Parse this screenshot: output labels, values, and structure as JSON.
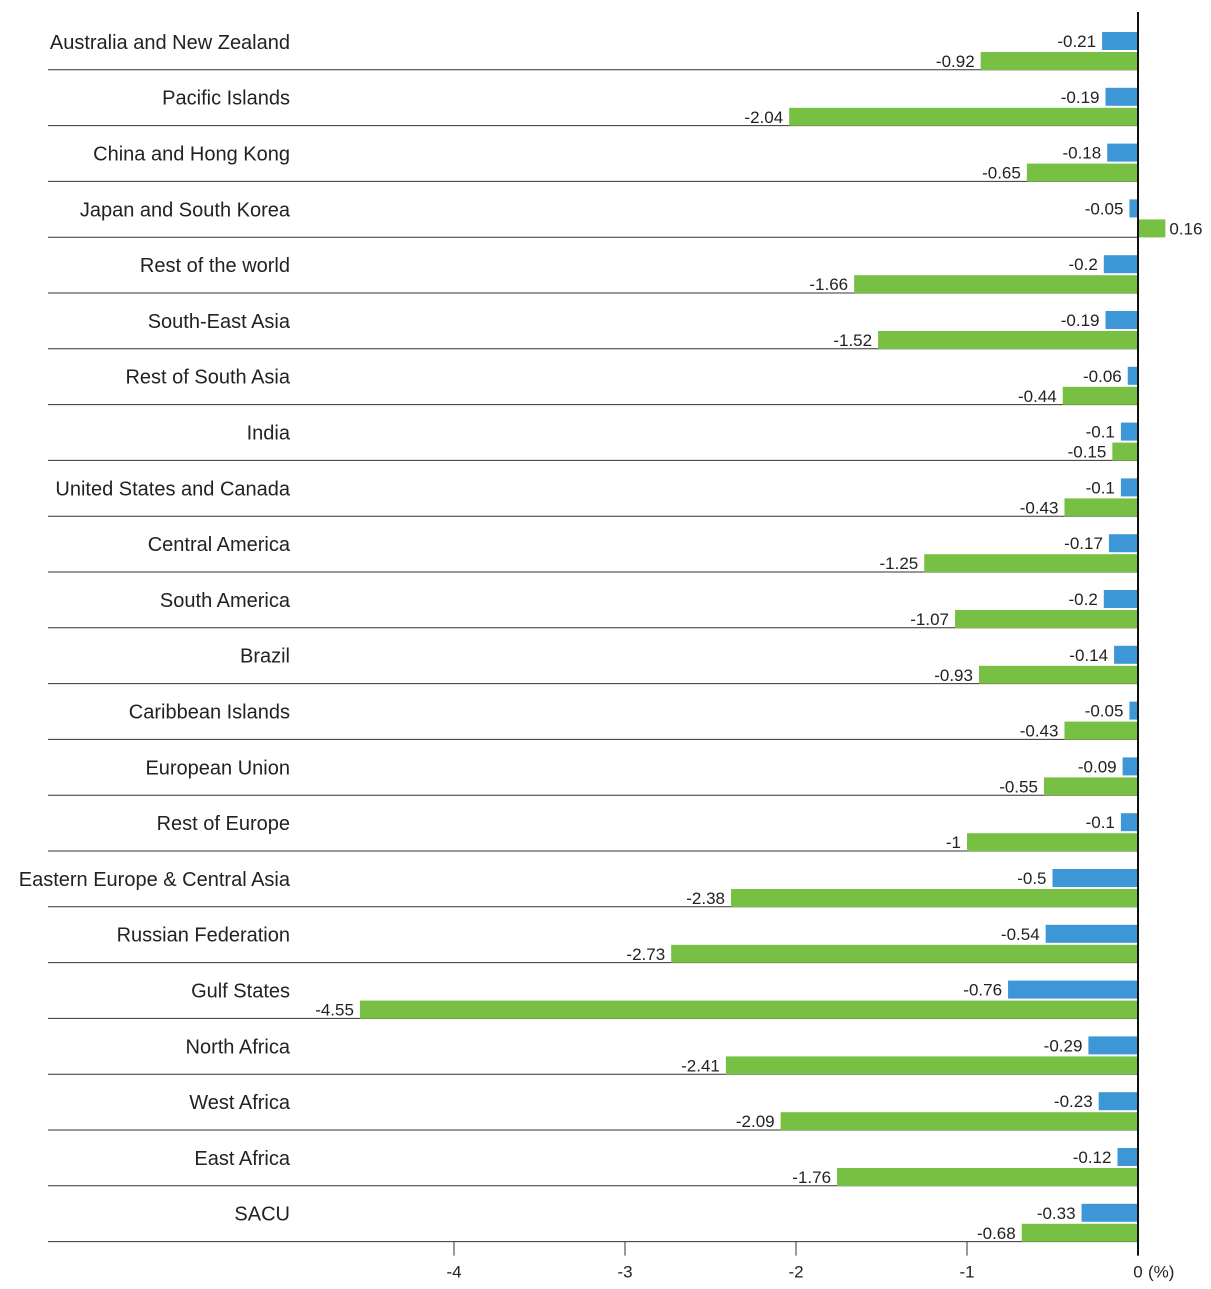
{
  "chart_data": {
    "type": "bar",
    "orientation": "horizontal",
    "title": "",
    "xlabel": "",
    "ylabel": "",
    "x_unit_label": "(%)",
    "xlim": [
      -4.6,
      0.2
    ],
    "xticks": [
      -4,
      -3,
      -2,
      -1,
      0
    ],
    "grid": false,
    "legend": "none",
    "categories": [
      "Australia and New Zealand",
      "Pacific Islands",
      "China and Hong Kong",
      "Japan and South Korea",
      "Rest of the world",
      "South-East Asia",
      "Rest of South Asia",
      "India",
      "United States and Canada",
      "Central America",
      "South America",
      "Brazil",
      "Caribbean Islands",
      "European Union",
      "Rest of Europe",
      "Eastern Europe & Central Asia",
      "Russian Federation",
      "Gulf States",
      "North Africa",
      "West Africa",
      "East Africa",
      "SACU"
    ],
    "series": [
      {
        "color": "#3d97d6",
        "values": [
          -0.21,
          -0.19,
          -0.18,
          -0.05,
          -0.2,
          -0.19,
          -0.06,
          -0.1,
          -0.1,
          -0.17,
          -0.2,
          -0.14,
          -0.05,
          -0.09,
          -0.1,
          -0.5,
          -0.54,
          -0.76,
          -0.29,
          -0.23,
          -0.12,
          -0.33
        ],
        "labels": [
          "-0.21",
          "-0.19",
          "-0.18",
          "-0.05",
          "-0.2",
          "-0.19",
          "-0.06",
          "-0.1",
          "-0.1",
          "-0.17",
          "-0.2",
          "-0.14",
          "-0.05",
          "-0.09",
          "-0.1",
          "-0.5",
          "-0.54",
          "-0.76",
          "-0.29",
          "-0.23",
          "-0.12",
          "-0.33"
        ]
      },
      {
        "color": "#77c043",
        "values": [
          -0.92,
          -2.04,
          -0.65,
          0.16,
          -1.66,
          -1.52,
          -0.44,
          -0.15,
          -0.43,
          -1.25,
          -1.07,
          -0.93,
          -0.43,
          -0.55,
          -1,
          -2.38,
          -2.73,
          -4.55,
          -2.41,
          -2.09,
          -1.76,
          -0.68
        ],
        "labels": [
          "-0.92",
          "-2.04",
          "-0.65",
          "0.16",
          "-1.66",
          "-1.52",
          "-0.44",
          "-0.15",
          "-0.43",
          "-1.25",
          "-1.07",
          "-0.93",
          "-0.43",
          "-0.55",
          "-1",
          "-2.38",
          "-2.73",
          "-4.55",
          "-2.41",
          "-2.09",
          "-1.76",
          "-0.68"
        ]
      }
    ]
  }
}
